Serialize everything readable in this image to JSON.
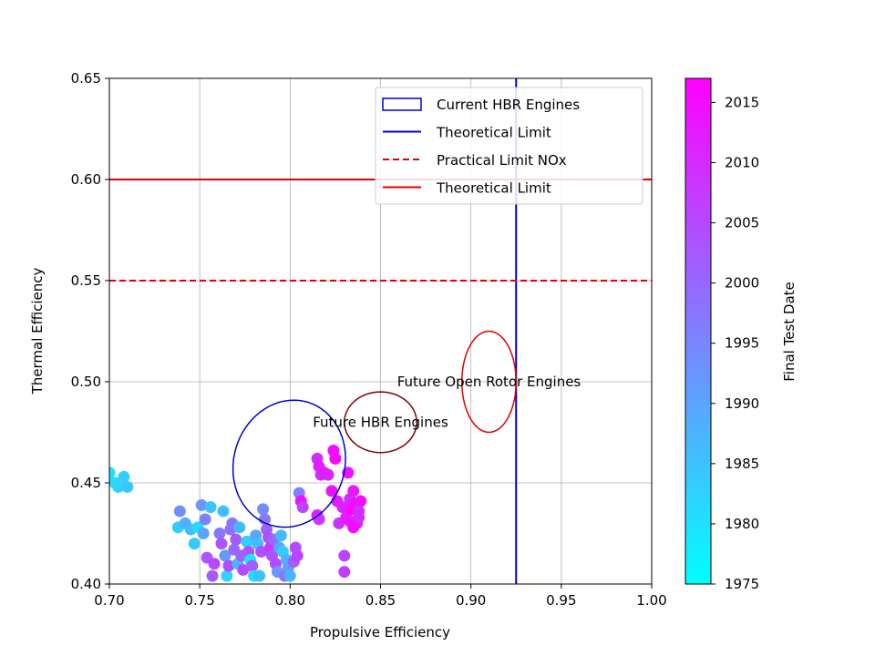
{
  "chart_data": {
    "type": "scatter",
    "xlabel": "Propulsive Efficiency",
    "ylabel": "Thermal Efficiency",
    "xlim": [
      0.7,
      1.0
    ],
    "ylim": [
      0.4,
      0.65
    ],
    "xticks": [
      "0.70",
      "0.75",
      "0.80",
      "0.85",
      "0.90",
      "0.95",
      "1.00"
    ],
    "yticks": [
      "0.40",
      "0.45",
      "0.50",
      "0.55",
      "0.60",
      "0.65"
    ],
    "grid": true,
    "legend_position": "top-right",
    "legend": [
      {
        "label": "Current HBR Engines",
        "kind": "ellipse-patch",
        "color": "#0000cc"
      },
      {
        "label": "Theoretical Limit",
        "kind": "solid-line",
        "color": "#0000cc"
      },
      {
        "label": "Practical Limit NOx",
        "kind": "dashed-line",
        "color": "#e00000"
      },
      {
        "label": "Theoretical Limit",
        "kind": "solid-line",
        "color": "#e00000"
      }
    ],
    "reference_lines": [
      {
        "orientation": "vertical",
        "value": 0.925,
        "style": "solid",
        "color": "#0000cc"
      },
      {
        "orientation": "horizontal",
        "value": 0.6,
        "style": "solid",
        "color": "#e00000"
      },
      {
        "orientation": "horizontal",
        "value": 0.55,
        "style": "dashed",
        "color": "#e00000"
      }
    ],
    "ellipses": [
      {
        "name": "current-hbr",
        "center": [
          0.7995,
          0.4595
        ],
        "width": 0.06,
        "height": 0.065,
        "angle": -42,
        "color": "#0000cc"
      },
      {
        "name": "future-hbr",
        "center": [
          0.85,
          0.48
        ],
        "width": 0.04,
        "height": 0.03,
        "angle": 0,
        "color": "#800000"
      },
      {
        "name": "future-open-rotor",
        "center": [
          0.91,
          0.5
        ],
        "width": 0.03,
        "height": 0.05,
        "angle": 0,
        "color": "#e00000"
      }
    ],
    "annotations": [
      {
        "text": "Future HBR Engines",
        "x": 0.85,
        "y": 0.48
      },
      {
        "text": "Future Open Rotor Engines",
        "x": 0.91,
        "y": 0.5
      }
    ],
    "colorbar": {
      "label": "Final Test Date",
      "min": 1975,
      "max": 2017,
      "ticks": [
        "1975",
        "1980",
        "1985",
        "1990",
        "1995",
        "2000",
        "2005",
        "2010",
        "2015"
      ],
      "colormap": "cool",
      "color_low": "#00ffff",
      "color_high": "#ff00ff"
    },
    "points": [
      [
        0.7,
        0.455,
        1980
      ],
      [
        0.703,
        0.45,
        1981
      ],
      [
        0.705,
        0.448,
        1982
      ],
      [
        0.708,
        0.453,
        1983
      ],
      [
        0.71,
        0.448,
        1984
      ],
      [
        0.738,
        0.428,
        1983
      ],
      [
        0.739,
        0.436,
        1994
      ],
      [
        0.742,
        0.43,
        1988
      ],
      [
        0.745,
        0.427,
        1986
      ],
      [
        0.747,
        0.42,
        1984
      ],
      [
        0.749,
        0.428,
        1981
      ],
      [
        0.751,
        0.439,
        1992
      ],
      [
        0.752,
        0.425,
        1990
      ],
      [
        0.753,
        0.432,
        1996
      ],
      [
        0.754,
        0.413,
        2003
      ],
      [
        0.756,
        0.438,
        1985
      ],
      [
        0.757,
        0.404,
        2002
      ],
      [
        0.758,
        0.41,
        2005
      ],
      [
        0.761,
        0.425,
        1997
      ],
      [
        0.762,
        0.42,
        2003
      ],
      [
        0.763,
        0.436,
        1985
      ],
      [
        0.764,
        0.414,
        1992
      ],
      [
        0.765,
        0.404,
        1982
      ],
      [
        0.766,
        0.409,
        2004
      ],
      [
        0.767,
        0.427,
        1999
      ],
      [
        0.768,
        0.43,
        1997
      ],
      [
        0.769,
        0.417,
        2000
      ],
      [
        0.77,
        0.422,
        2002
      ],
      [
        0.771,
        0.41,
        1987
      ],
      [
        0.772,
        0.428,
        1986
      ],
      [
        0.773,
        0.414,
        2001
      ],
      [
        0.774,
        0.407,
        2005
      ],
      [
        0.776,
        0.421,
        1983
      ],
      [
        0.777,
        0.416,
        2003
      ],
      [
        0.778,
        0.412,
        1979
      ],
      [
        0.779,
        0.409,
        2002
      ],
      [
        0.78,
        0.404,
        1981
      ],
      [
        0.781,
        0.424,
        1990
      ],
      [
        0.782,
        0.42,
        1986
      ],
      [
        0.783,
        0.404,
        1985
      ],
      [
        0.784,
        0.416,
        2004
      ],
      [
        0.785,
        0.437,
        1994
      ],
      [
        0.786,
        0.432,
        1997
      ],
      [
        0.787,
        0.427,
        2001
      ],
      [
        0.788,
        0.423,
        2004
      ],
      [
        0.789,
        0.418,
        2008
      ],
      [
        0.79,
        0.414,
        2003
      ],
      [
        0.791,
        0.422,
        1999
      ],
      [
        0.792,
        0.41,
        2005
      ],
      [
        0.793,
        0.406,
        1992
      ],
      [
        0.794,
        0.418,
        1990
      ],
      [
        0.795,
        0.424,
        1986
      ],
      [
        0.796,
        0.416,
        1983
      ],
      [
        0.797,
        0.404,
        1998
      ],
      [
        0.798,
        0.412,
        1988
      ],
      [
        0.799,
        0.408,
        1991
      ],
      [
        0.8,
        0.404,
        1987
      ],
      [
        0.802,
        0.411,
        2002
      ],
      [
        0.803,
        0.418,
        2005
      ],
      [
        0.804,
        0.414,
        2006
      ],
      [
        0.805,
        0.445,
        1996
      ],
      [
        0.806,
        0.441,
        2014
      ],
      [
        0.807,
        0.438,
        2006
      ],
      [
        0.815,
        0.462,
        2010
      ],
      [
        0.816,
        0.458,
        2012
      ],
      [
        0.817,
        0.454,
        2009
      ],
      [
        0.815,
        0.434,
        2012
      ],
      [
        0.816,
        0.432,
        2008
      ],
      [
        0.819,
        0.455,
        2013
      ],
      [
        0.821,
        0.454,
        2011
      ],
      [
        0.823,
        0.446,
        2014
      ],
      [
        0.824,
        0.466,
        2015
      ],
      [
        0.825,
        0.462,
        2016
      ],
      [
        0.827,
        0.43,
        2009
      ],
      [
        0.829,
        0.438,
        2011
      ],
      [
        0.831,
        0.433,
        2012
      ],
      [
        0.832,
        0.455,
        2014
      ],
      [
        0.833,
        0.442,
        2010
      ],
      [
        0.834,
        0.437,
        2016
      ],
      [
        0.835,
        0.446,
        2013
      ],
      [
        0.836,
        0.44,
        2015
      ],
      [
        0.837,
        0.43,
        2011
      ],
      [
        0.838,
        0.436,
        2009
      ],
      [
        0.839,
        0.441,
        2014
      ],
      [
        0.83,
        0.414,
        2006
      ],
      [
        0.83,
        0.406,
        2007
      ],
      [
        0.826,
        0.441,
        2012
      ],
      [
        0.833,
        0.431,
        2013
      ],
      [
        0.835,
        0.428,
        2015
      ],
      [
        0.838,
        0.433,
        2010
      ]
    ]
  }
}
